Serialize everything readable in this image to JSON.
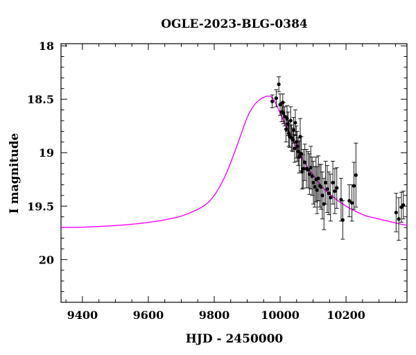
{
  "chart_data": {
    "type": "scatter",
    "title": "OGLE-2023-BLG-0384",
    "xlabel": "HJD - 2450000",
    "ylabel": "I magnitude",
    "xlim": [
      9335,
      10385
    ],
    "ylim": [
      20.4,
      17.98
    ],
    "y_inverted": true,
    "x_ticks": [
      9400,
      9600,
      9800,
      10000,
      10200
    ],
    "x_tick_labels": [
      "9400",
      "9600",
      "9800",
      "10000",
      "10200"
    ],
    "y_ticks": [
      18,
      18.5,
      19,
      19.5,
      20
    ],
    "y_tick_labels": [
      "18",
      "18.5",
      "19",
      "19.5",
      "20"
    ],
    "grid": false,
    "colors": {
      "model": "#ff00ff",
      "data": "#000000",
      "axes": "#000000"
    },
    "series": [
      {
        "kind": "model",
        "x": [
          9335,
          9400,
          9450,
          9500,
          9550,
          9600,
          9650,
          9700,
          9750,
          9780,
          9800,
          9820,
          9840,
          9860,
          9880,
          9900,
          9920,
          9940,
          9955,
          9965,
          9972,
          9980,
          9990,
          10000,
          10020,
          10040,
          10060,
          10080,
          10100,
          10120,
          10140,
          10160,
          10180,
          10200,
          10230,
          10260,
          10300,
          10340,
          10385
        ],
        "y": [
          19.7,
          19.697,
          19.69,
          19.682,
          19.67,
          19.652,
          19.628,
          19.593,
          19.53,
          19.47,
          19.4,
          19.3,
          19.17,
          19.01,
          18.84,
          18.67,
          18.56,
          18.5,
          18.475,
          18.47,
          18.475,
          18.5,
          18.56,
          18.63,
          18.76,
          18.89,
          19.01,
          19.12,
          19.21,
          19.29,
          19.36,
          19.41,
          19.46,
          19.5,
          19.55,
          19.59,
          19.62,
          19.65,
          19.68
        ]
      },
      {
        "kind": "data",
        "x": [
          9976,
          9988,
          9996,
          10000,
          10005,
          10008,
          10010,
          10014,
          10018,
          10021,
          10024,
          10026,
          10029,
          10032,
          10035,
          10038,
          10041,
          10044,
          10046,
          10049,
          10052,
          10055,
          10058,
          10061,
          10064,
          10067,
          10070,
          10075,
          10080,
          10085,
          10089,
          10093,
          10097,
          10101,
          10105,
          10109,
          10112,
          10116,
          10120,
          10124,
          10128,
          10133,
          10138,
          10143,
          10148,
          10153,
          10160,
          10166,
          10172,
          10185,
          10190,
          10210,
          10218,
          10224,
          10230,
          10352,
          10360,
          10368,
          10374
        ],
        "y": [
          18.52,
          18.49,
          18.36,
          18.55,
          18.62,
          18.53,
          18.63,
          18.66,
          18.78,
          18.68,
          18.73,
          18.82,
          18.85,
          18.7,
          18.86,
          18.88,
          18.79,
          18.96,
          18.72,
          18.9,
          18.94,
          18.99,
          19.04,
          18.85,
          19.01,
          19.18,
          19.15,
          19.09,
          19.15,
          19.16,
          19.2,
          19.14,
          19.22,
          19.28,
          19.32,
          19.25,
          19.35,
          19.24,
          19.31,
          19.32,
          19.4,
          19.48,
          19.28,
          19.34,
          19.38,
          19.42,
          19.28,
          19.36,
          19.33,
          19.44,
          19.63,
          19.45,
          19.47,
          19.31,
          19.21,
          19.56,
          19.62,
          19.51,
          19.49
        ],
        "err": [
          0.06,
          0.08,
          0.07,
          0.1,
          0.09,
          0.08,
          0.1,
          0.09,
          0.12,
          0.12,
          0.11,
          0.12,
          0.1,
          0.13,
          0.12,
          0.11,
          0.12,
          0.13,
          0.12,
          0.15,
          0.14,
          0.13,
          0.15,
          0.17,
          0.16,
          0.16,
          0.18,
          0.17,
          0.18,
          0.17,
          0.19,
          0.2,
          0.18,
          0.2,
          0.19,
          0.21,
          0.22,
          0.21,
          0.2,
          0.21,
          0.22,
          0.24,
          0.2,
          0.22,
          0.2,
          0.22,
          0.2,
          0.21,
          0.19,
          0.2,
          0.18,
          0.15,
          0.17,
          0.22,
          0.3,
          0.18,
          0.2,
          0.14,
          0.13
        ]
      }
    ]
  }
}
